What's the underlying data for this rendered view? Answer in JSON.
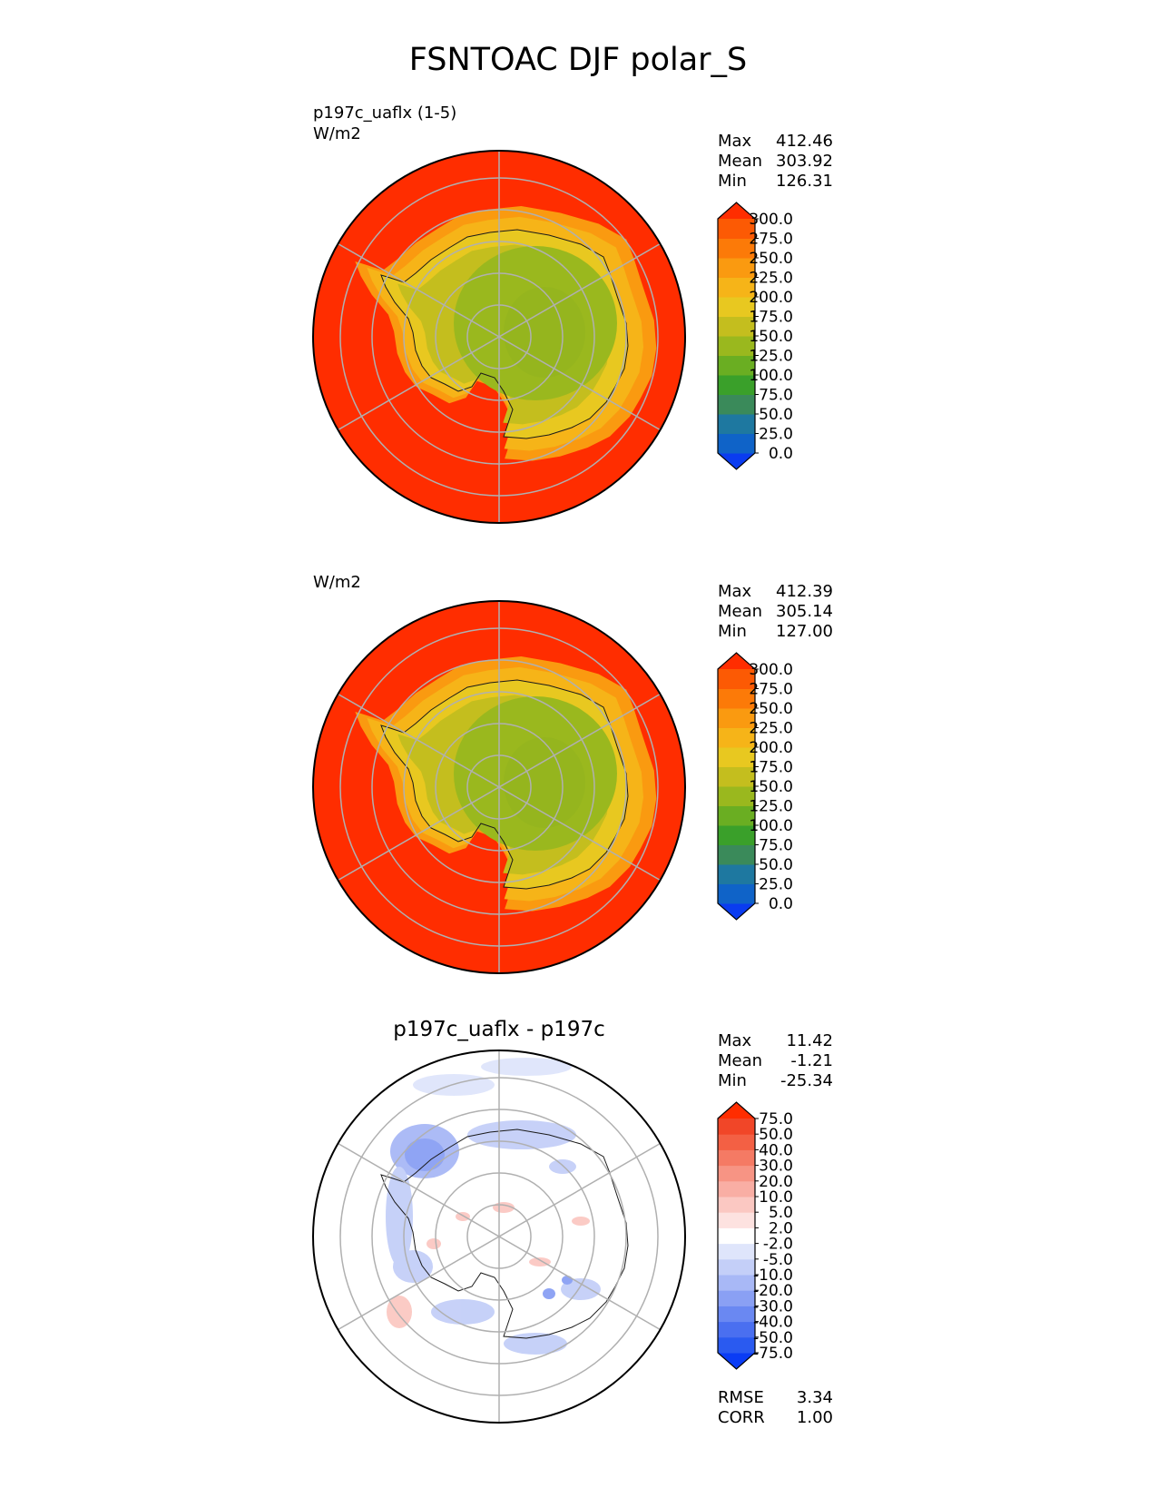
{
  "figure_title": "FSNTOAC DJF polar_S",
  "colors": {
    "background": "#ffffff",
    "grid": "#b0b0b0",
    "coast": "#1a1a1a"
  },
  "chart_data": [
    {
      "type": "heatmap",
      "projection": "south-polar-stereographic",
      "title": "",
      "subtitle": "p197c_uaflx (1-5)",
      "units": "W/m2",
      "stats": {
        "max_label": "Max",
        "max": "412.46",
        "mean_label": "Mean",
        "mean": "303.92",
        "min_label": "Min",
        "min": "126.31"
      },
      "colorbar": {
        "levels": [
          "0.0",
          "25.0",
          "50.0",
          "75.0",
          "100.0",
          "125.0",
          "150.0",
          "175.0",
          "200.0",
          "225.0",
          "250.0",
          "275.0",
          "300.0"
        ],
        "colors": [
          "#0a3cf0",
          "#0f63c8",
          "#1e78a0",
          "#3a8a5a",
          "#3aa02a",
          "#6aae22",
          "#9ab81e",
          "#c4be1e",
          "#e8c820",
          "#f6b418",
          "#fa9a10",
          "#fc7a08",
          "#fc5a04",
          "#ff2d00"
        ],
        "extend": "both"
      },
      "field": {
        "ocean": 300,
        "coast_band": 240,
        "inland_band": 195,
        "plateau": 150
      }
    },
    {
      "type": "heatmap",
      "projection": "south-polar-stereographic",
      "title": "",
      "subtitle": "",
      "units": "W/m2",
      "stats": {
        "max_label": "Max",
        "max": "412.39",
        "mean_label": "Mean",
        "mean": "305.14",
        "min_label": "Min",
        "min": "127.00"
      },
      "colorbar": {
        "levels": [
          "0.0",
          "25.0",
          "50.0",
          "75.0",
          "100.0",
          "125.0",
          "150.0",
          "175.0",
          "200.0",
          "225.0",
          "250.0",
          "275.0",
          "300.0"
        ],
        "colors": [
          "#0a3cf0",
          "#0f63c8",
          "#1e78a0",
          "#3a8a5a",
          "#3aa02a",
          "#6aae22",
          "#9ab81e",
          "#c4be1e",
          "#e8c820",
          "#f6b418",
          "#fa9a10",
          "#fc7a08",
          "#fc5a04",
          "#ff2d00"
        ],
        "extend": "both"
      },
      "field": {
        "ocean": 300,
        "coast_band": 240,
        "inland_band": 195,
        "plateau": 150
      }
    },
    {
      "type": "heatmap",
      "projection": "south-polar-stereographic",
      "title": "p197c_uaflx - p197c",
      "subtitle": "",
      "units": "",
      "stats": {
        "max_label": "Max",
        "max": "11.42",
        "mean_label": "Mean",
        "mean": "-1.21",
        "min_label": "Min",
        "min": "-25.34"
      },
      "colorbar": {
        "levels": [
          "-75.0",
          "-50.0",
          "-40.0",
          "-30.0",
          "-20.0",
          "-10.0",
          "-5.0",
          "-2.0",
          "2.0",
          "5.0",
          "10.0",
          "20.0",
          "30.0",
          "40.0",
          "50.0",
          "75.0"
        ],
        "colors": [
          "#0a3cf5",
          "#2a5af0",
          "#4a6ff0",
          "#6a88f2",
          "#8aa0f4",
          "#a8b8f6",
          "#c4cff8",
          "#dfe5fb",
          "#ffffff",
          "#fde2e0",
          "#fbc8c2",
          "#f9aea4",
          "#f79484",
          "#f57a64",
          "#f36044",
          "#f14628",
          "#ff2d00"
        ],
        "extend": "both"
      },
      "extra_stats": {
        "rmse_label": "RMSE",
        "rmse": "3.34",
        "corr_label": "CORR",
        "corr": "1.00"
      },
      "field": {
        "ocean": 0,
        "blue_patch": -8,
        "red_patch": 5
      }
    }
  ]
}
